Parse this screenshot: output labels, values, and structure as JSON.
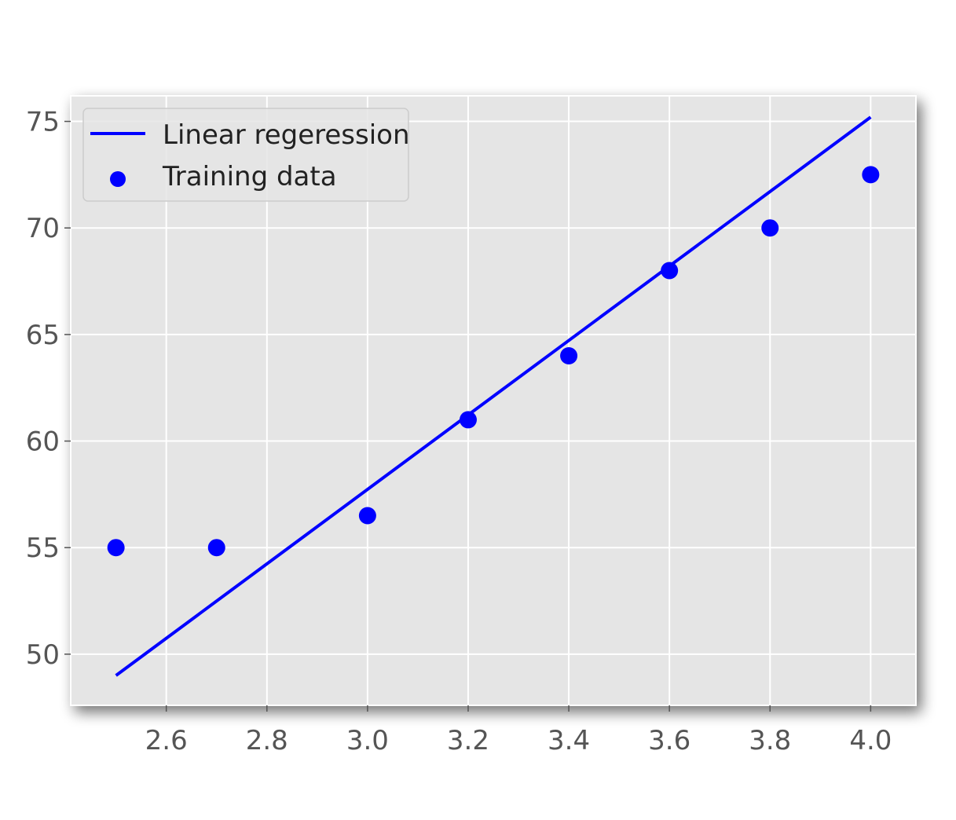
{
  "chart_data": {
    "type": "scatter",
    "title": "",
    "xlabel": "",
    "ylabel": "",
    "xlim": [
      2.41,
      4.09
    ],
    "ylim": [
      47.6,
      76.2
    ],
    "xticks": [
      2.6,
      2.8,
      3.0,
      3.2,
      3.4,
      3.6,
      3.8,
      4.0
    ],
    "xtick_labels": [
      "2.6",
      "2.8",
      "3.0",
      "3.2",
      "3.4",
      "3.6",
      "3.8",
      "4.0"
    ],
    "yticks": [
      50,
      55,
      60,
      65,
      70,
      75
    ],
    "ytick_labels": [
      "50",
      "55",
      "60",
      "65",
      "70",
      "75"
    ],
    "grid": true,
    "legend_position": "upper-left",
    "series": [
      {
        "name": "Linear regeression",
        "kind": "line",
        "color": "#0000ff",
        "x": [
          2.5,
          4.0
        ],
        "y": [
          49.0,
          75.2
        ]
      },
      {
        "name": "Training data",
        "kind": "scatter",
        "color": "#0000ff",
        "x": [
          2.5,
          2.7,
          3.0,
          3.2,
          3.4,
          3.6,
          3.8,
          4.0
        ],
        "y": [
          55.0,
          55.0,
          56.5,
          61.0,
          64.0,
          68.0,
          70.0,
          72.5
        ]
      }
    ],
    "style": {
      "plot_background": "#e5e5e5",
      "grid_color": "#ffffff",
      "tick_color": "#555555"
    }
  }
}
